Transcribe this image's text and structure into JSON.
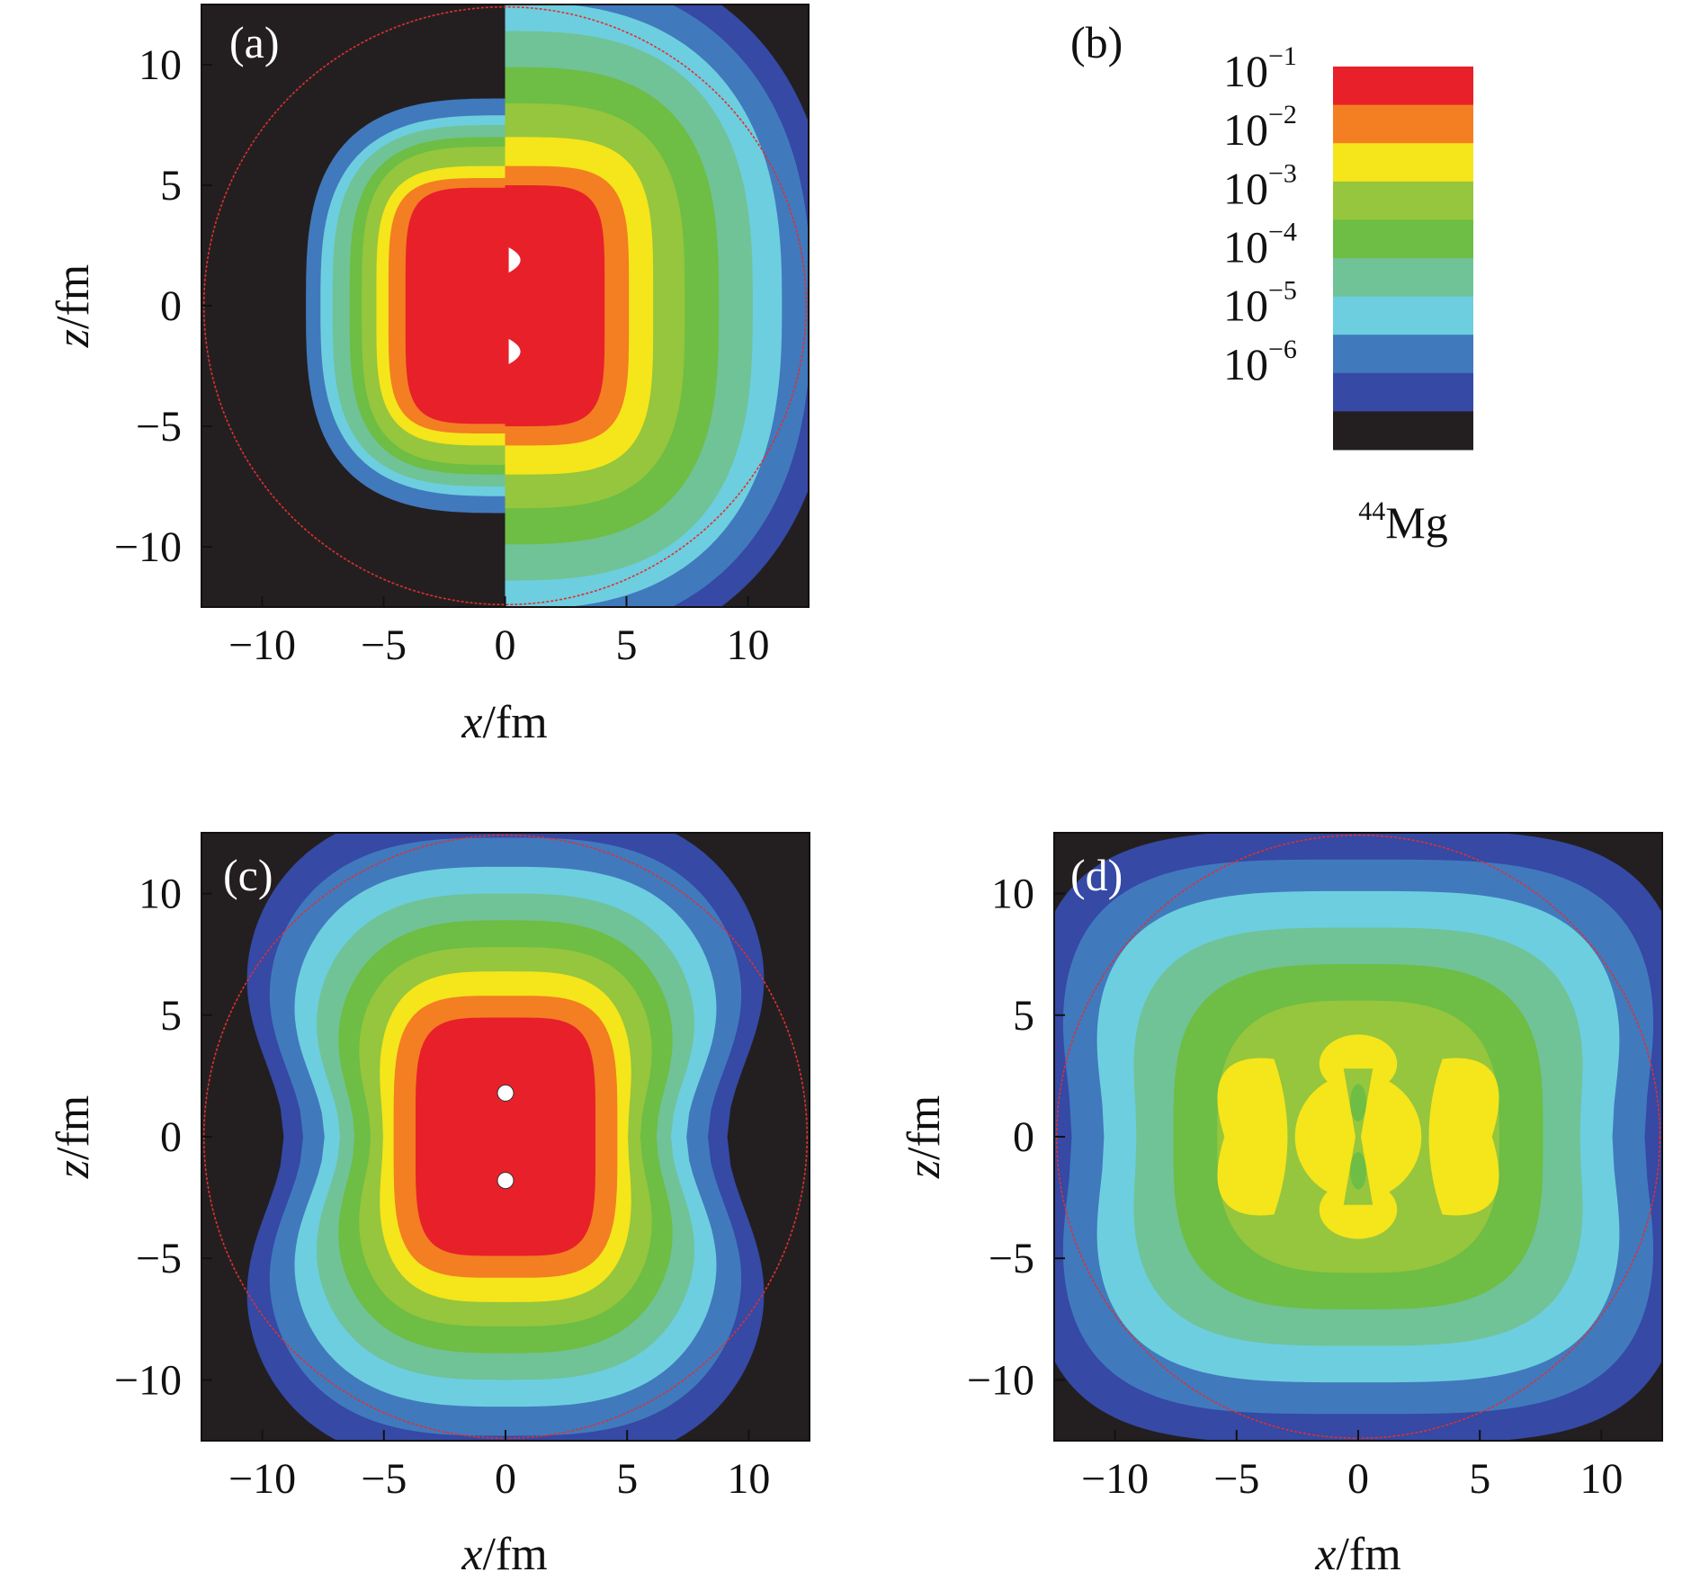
{
  "figure": {
    "nucleus_label": {
      "mass_number": "44",
      "element": "Mg"
    }
  },
  "chart_data": [
    {
      "id": "a",
      "panel_label": "(a)",
      "type": "heatmap",
      "xlabel_var": "x",
      "ylabel_var": "z",
      "unit": "/fm",
      "xlim": [
        -12.5,
        12.5
      ],
      "ylim": [
        -12.5,
        12.5
      ],
      "xticks": [
        "−10",
        "−5",
        "0",
        "5",
        "10"
      ],
      "yticks": [
        "10",
        "5",
        "0",
        "−5",
        "−10"
      ],
      "tick_values": [
        -10,
        -5,
        0,
        5,
        10
      ],
      "reference_circle_radius": 12.4,
      "left_half_contours": [
        {
          "color_index": 0,
          "a": 4.1,
          "b": 4.9,
          "n": 5
        },
        {
          "color_index": 1,
          "a": 4.8,
          "b": 5.3,
          "n": 4.5
        },
        {
          "color_index": 2,
          "a": 5.3,
          "b": 5.8,
          "n": 4
        },
        {
          "color_index": 3,
          "a": 5.9,
          "b": 6.6,
          "n": 3.6
        },
        {
          "color_index": 4,
          "a": 6.4,
          "b": 7.0,
          "n": 3.4
        },
        {
          "color_index": 5,
          "a": 7.1,
          "b": 7.5,
          "n": 3.2
        },
        {
          "color_index": 6,
          "a": 7.6,
          "b": 7.9,
          "n": 3
        },
        {
          "color_index": 7,
          "a": 8.2,
          "b": 8.6,
          "n": 3
        }
      ],
      "right_half_contours": [
        {
          "color_index": 0,
          "a": 4.1,
          "b": 5.0,
          "n": 5
        },
        {
          "color_index": 1,
          "a": 5.1,
          "b": 5.8,
          "n": 4.5
        },
        {
          "color_index": 2,
          "a": 6.1,
          "b": 7.0,
          "n": 4
        },
        {
          "color_index": 3,
          "a": 7.4,
          "b": 8.4,
          "n": 3.3
        },
        {
          "color_index": 4,
          "a": 8.8,
          "b": 9.9,
          "n": 3
        },
        {
          "color_index": 5,
          "a": 10.2,
          "b": 11.4,
          "n": 2.8
        },
        {
          "color_index": 6,
          "a": 11.4,
          "b": 12.6,
          "n": 2.6
        },
        {
          "color_index": 7,
          "a": 12.6,
          "b": 13.8,
          "n": 2.5
        },
        {
          "color_index": 8,
          "a": 13.6,
          "b": 14.8,
          "n": 2.5
        }
      ],
      "markers": [
        {
          "x": 0.3,
          "z": 1.9
        },
        {
          "x": 0.3,
          "z": -1.9
        }
      ]
    },
    {
      "id": "c",
      "panel_label": "(c)",
      "type": "heatmap",
      "xlabel_var": "x",
      "ylabel_var": "z",
      "unit": "/fm",
      "xlim": [
        -12.5,
        12.5
      ],
      "ylim": [
        -12.5,
        12.5
      ],
      "xticks": [
        "−10",
        "−5",
        "0",
        "5",
        "10"
      ],
      "yticks": [
        "10",
        "5",
        "0",
        "−5",
        "−10"
      ],
      "tick_values": [
        -10,
        -5,
        0,
        5,
        10
      ],
      "reference_circle_radius": 12.4,
      "contours": [
        {
          "color_index": 0,
          "a": 3.7,
          "b": 4.9,
          "n": 4.5,
          "waist": 0
        },
        {
          "color_index": 1,
          "a": 4.6,
          "b": 5.8,
          "n": 4,
          "waist": 0
        },
        {
          "color_index": 2,
          "a": 5.3,
          "b": 6.8,
          "n": 3.5,
          "waist": 0.05
        },
        {
          "color_index": 3,
          "a": 6.3,
          "b": 7.8,
          "n": 3.3,
          "waist": 0.12
        },
        {
          "color_index": 4,
          "a": 7.3,
          "b": 8.9,
          "n": 3,
          "waist": 0.15
        },
        {
          "color_index": 5,
          "a": 8.3,
          "b": 10.0,
          "n": 3,
          "waist": 0.18
        },
        {
          "color_index": 6,
          "a": 9.3,
          "b": 11.1,
          "n": 3,
          "waist": 0.2
        },
        {
          "color_index": 7,
          "a": 10.4,
          "b": 12.3,
          "n": 3,
          "waist": 0.2
        },
        {
          "color_index": 8,
          "a": 11.4,
          "b": 13.6,
          "n": 3,
          "waist": 0.2
        }
      ],
      "markers": [
        {
          "x": 0,
          "z": 1.8
        },
        {
          "x": 0,
          "z": -1.8
        }
      ]
    },
    {
      "id": "d",
      "panel_label": "(d)",
      "type": "heatmap",
      "xlabel_var": "x",
      "ylabel_var": "z",
      "unit": "/fm",
      "xlim": [
        -12.5,
        12.5
      ],
      "ylim": [
        -12.5,
        12.5
      ],
      "xticks": [
        "−10",
        "−5",
        "0",
        "5",
        "10"
      ],
      "yticks": [
        "10",
        "5",
        "0",
        "−5",
        "−10"
      ],
      "tick_values": [
        -10,
        -5,
        0,
        5,
        10
      ],
      "reference_circle_radius": 12.4,
      "contours": [
        {
          "color_index": 3,
          "a": 5.8,
          "b": 5.6,
          "n": 3,
          "waist": 0
        },
        {
          "color_index": 4,
          "a": 7.6,
          "b": 7.1,
          "n": 3.3,
          "waist": 0
        },
        {
          "color_index": 5,
          "a": 9.4,
          "b": 8.6,
          "n": 3.5,
          "waist": 0.03
        },
        {
          "color_index": 6,
          "a": 11.0,
          "b": 10.1,
          "n": 3.6,
          "waist": 0.05
        },
        {
          "color_index": 7,
          "a": 12.4,
          "b": 11.4,
          "n": 3.8,
          "waist": 0.05
        },
        {
          "color_index": 8,
          "a": 13.6,
          "b": 12.6,
          "n": 4,
          "waist": 0.05
        }
      ],
      "yellow_regions": [
        {
          "shape": "central-disk",
          "x": 0,
          "z": 0,
          "rx": 2.6,
          "rz": 2.6
        },
        {
          "shape": "top-lobe",
          "x": 0,
          "z": 3.0,
          "rx": 1.6,
          "rz": 1.2
        },
        {
          "shape": "bottom-lobe",
          "x": 0,
          "z": -3.0,
          "rx": 1.6,
          "rz": 1.2
        },
        {
          "shape": "left-crescent",
          "x": -3.8,
          "z": 0,
          "rx": 1.7,
          "rz": 3.2
        },
        {
          "shape": "right-crescent",
          "x": 3.8,
          "z": 0,
          "rx": 1.7,
          "rz": 3.2
        }
      ],
      "green_bowtie": {
        "half_width": 0.6,
        "half_height": 1.4
      }
    },
    {
      "id": "b",
      "panel_label": "(b)",
      "type": "colorbar",
      "scale": "log",
      "tick_labels": [
        {
          "base": "10",
          "exponent": "−1"
        },
        {
          "base": "10",
          "exponent": "−2"
        },
        {
          "base": "10",
          "exponent": "−3"
        },
        {
          "base": "10",
          "exponent": "−4"
        },
        {
          "base": "10",
          "exponent": "−5"
        },
        {
          "base": "10",
          "exponent": "−6"
        }
      ],
      "levels": [
        "#e8202a",
        "#f37f22",
        "#f5e51b",
        "#95c63d",
        "#6ebd44",
        "#6fc396",
        "#6dcedf",
        "#4179bd",
        "#3549a5",
        "#231f20"
      ]
    }
  ]
}
